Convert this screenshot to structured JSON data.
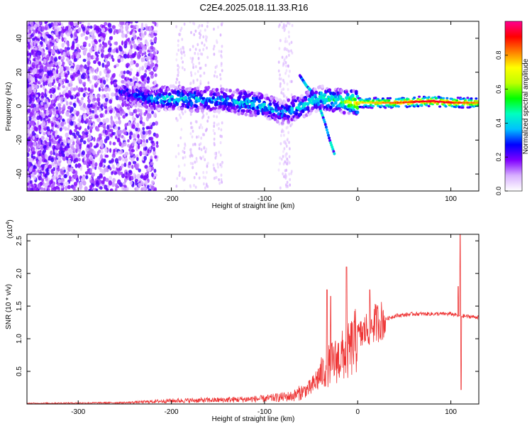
{
  "title": "C2E4.2025.018.11.33.R16",
  "chart_data": [
    {
      "type": "heatmap",
      "xlabel": "Height of straight line (km)",
      "ylabel": "Frequency (Hz)",
      "xlim": [
        -355,
        130
      ],
      "ylim": [
        -50,
        50
      ],
      "xticks": [
        -300,
        -200,
        -100,
        0,
        100
      ],
      "yticks": [
        -40,
        -20,
        0,
        20,
        40
      ],
      "colorbar": {
        "label": "Normalized spectral amplitude",
        "range": [
          0,
          1
        ],
        "ticks": [
          0.0,
          0.2,
          0.4,
          0.6,
          0.8
        ],
        "colors": [
          "#ffffff",
          "#d8b0ff",
          "#8000ff",
          "#0000ff",
          "#00c0ff",
          "#00ffc0",
          "#00ff00",
          "#c0ff00",
          "#ffff00",
          "#ff8000",
          "#ff0000",
          "#ff0090"
        ]
      },
      "ridge": [
        {
          "x": -250,
          "f": 8,
          "a": 0.25
        },
        {
          "x": -220,
          "f": 4,
          "a": 0.35
        },
        {
          "x": -200,
          "f": 5,
          "a": 0.4
        },
        {
          "x": -180,
          "f": 4,
          "a": 0.4
        },
        {
          "x": -160,
          "f": 4,
          "a": 0.35
        },
        {
          "x": -140,
          "f": 3,
          "a": 0.35
        },
        {
          "x": -120,
          "f": 2,
          "a": 0.4
        },
        {
          "x": -100,
          "f": 0,
          "a": 0.4
        },
        {
          "x": -80,
          "f": -4,
          "a": 0.35
        },
        {
          "x": -60,
          "f": 0,
          "a": 0.4
        },
        {
          "x": -40,
          "f": 5,
          "a": 0.45
        },
        {
          "x": -20,
          "f": 3,
          "a": 0.5
        },
        {
          "x": 0,
          "f": 2,
          "a": 0.75
        },
        {
          "x": 40,
          "f": 2,
          "a": 0.85
        },
        {
          "x": 80,
          "f": 3,
          "a": 0.95
        },
        {
          "x": 100,
          "f": 2,
          "a": 0.9
        },
        {
          "x": 130,
          "f": 2,
          "a": 0.8
        }
      ],
      "branch_down": [
        {
          "x": -45,
          "f": 5
        },
        {
          "x": -40,
          "f": -2
        },
        {
          "x": -35,
          "f": -10
        },
        {
          "x": -30,
          "f": -20
        },
        {
          "x": -25,
          "f": -28
        }
      ],
      "branch_up": [
        {
          "x": -62,
          "f": 18
        },
        {
          "x": -55,
          "f": 12
        },
        {
          "x": -48,
          "f": 8
        }
      ]
    },
    {
      "type": "line",
      "xlabel": "Height of straight line (km)",
      "ylabel": "SNR (10 * v/v)",
      "scale_label": "(x10",
      "scale_exp": "4",
      "xlim": [
        -355,
        130
      ],
      "ylim": [
        0,
        2.6
      ],
      "xticks": [
        -300,
        -200,
        -100,
        0,
        100
      ],
      "yticks": [
        0.5,
        1.0,
        1.5,
        2.0,
        2.5
      ],
      "series": [
        {
          "color": "#ee3333",
          "envelope": [
            {
              "x": -355,
              "y": 0.01
            },
            {
              "x": -250,
              "y": 0.02
            },
            {
              "x": -200,
              "y": 0.05
            },
            {
              "x": -150,
              "y": 0.06
            },
            {
              "x": -100,
              "y": 0.08
            },
            {
              "x": -70,
              "y": 0.12
            },
            {
              "x": -50,
              "y": 0.25
            },
            {
              "x": -40,
              "y": 0.45
            },
            {
              "x": -30,
              "y": 0.6
            },
            {
              "x": -20,
              "y": 0.7
            },
            {
              "x": -10,
              "y": 0.8
            },
            {
              "x": 0,
              "y": 1.0
            },
            {
              "x": 10,
              "y": 1.15
            },
            {
              "x": 20,
              "y": 1.25
            },
            {
              "x": 40,
              "y": 1.35
            },
            {
              "x": 60,
              "y": 1.38
            },
            {
              "x": 80,
              "y": 1.38
            },
            {
              "x": 100,
              "y": 1.38
            },
            {
              "x": 110,
              "y": 1.35
            },
            {
              "x": 130,
              "y": 1.33
            }
          ],
          "spikes": [
            {
              "x": -33,
              "y": 1.75
            },
            {
              "x": -29,
              "y": 1.65
            },
            {
              "x": -12,
              "y": 2.1
            },
            {
              "x": 13,
              "y": 1.75
            },
            {
              "x": 0,
              "y": 1.2
            },
            {
              "x": 110,
              "y": 2.6
            },
            {
              "x": 108,
              "y": 1.8
            },
            {
              "x": 111,
              "y": 0.22
            }
          ]
        }
      ]
    }
  ]
}
